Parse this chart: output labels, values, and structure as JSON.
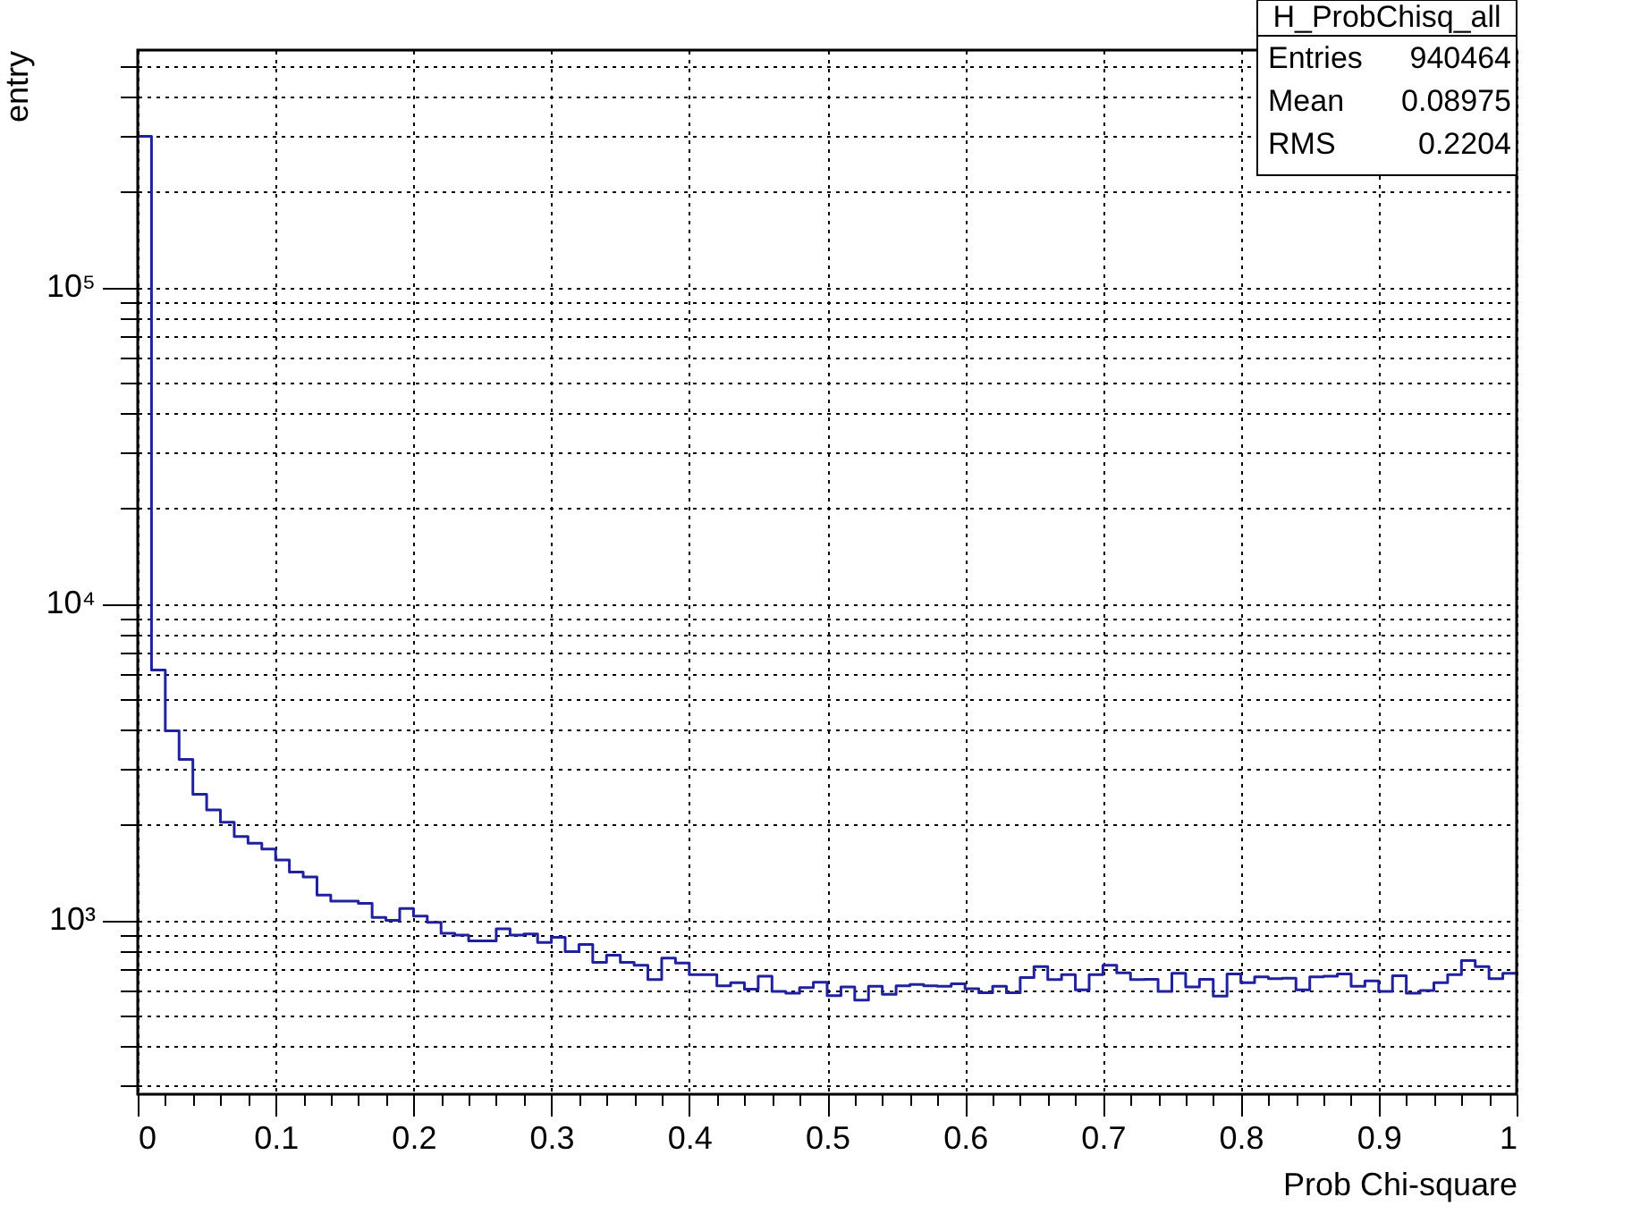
{
  "chart_data": {
    "type": "histogram",
    "xlabel": "Prob Chi-square",
    "ylabel": "entry",
    "bins": [
      0,
      0.01,
      0.02,
      0.03,
      0.04,
      0.05,
      0.06,
      0.07,
      0.08,
      0.09,
      0.1,
      0.11,
      0.12,
      0.13,
      0.14,
      0.15,
      0.16,
      0.17,
      0.18,
      0.19,
      0.2,
      0.21,
      0.22,
      0.23,
      0.24,
      0.25,
      0.26,
      0.27,
      0.28,
      0.29,
      0.3,
      0.31,
      0.32,
      0.33,
      0.34,
      0.35,
      0.36,
      0.37,
      0.38,
      0.39,
      0.4,
      0.41,
      0.42,
      0.43,
      0.44,
      0.45,
      0.46,
      0.47,
      0.48,
      0.49,
      0.5,
      0.51,
      0.52,
      0.53,
      0.54,
      0.55,
      0.56,
      0.57,
      0.58,
      0.59,
      0.6,
      0.61,
      0.62,
      0.63,
      0.64,
      0.65,
      0.66,
      0.67,
      0.68,
      0.69,
      0.7,
      0.71,
      0.72,
      0.73,
      0.74,
      0.75,
      0.76,
      0.77,
      0.78,
      0.79,
      0.8,
      0.81,
      0.82,
      0.83,
      0.84,
      0.85,
      0.86,
      0.87,
      0.88,
      0.89,
      0.9,
      0.91,
      0.92,
      0.93,
      0.94,
      0.95,
      0.96,
      0.97,
      0.98,
      0.99,
      1
    ],
    "values": [
      300000,
      6180,
      3970,
      3220,
      2500,
      2230,
      2040,
      1840,
      1750,
      1680,
      1550,
      1420,
      1370,
      1200,
      1150,
      1150,
      1130,
      1020,
      1000,
      1090,
      1030,
      985,
      910,
      897,
      860,
      860,
      940,
      897,
      905,
      851,
      883,
      796,
      838,
      736,
      775,
      736,
      721,
      649,
      759,
      732,
      673,
      673,
      621,
      635,
      606,
      666,
      596,
      588,
      613,
      637,
      578,
      616,
      559,
      619,
      583,
      621,
      627,
      621,
      619,
      630,
      608,
      590,
      619,
      590,
      659,
      714,
      649,
      673,
      603,
      673,
      721,
      682,
      649,
      651,
      596,
      680,
      616,
      651,
      576,
      676,
      635,
      662,
      654,
      656,
      603,
      662,
      666,
      676,
      619,
      643,
      596,
      668,
      588,
      600,
      635,
      673,
      746,
      714,
      654,
      680
    ],
    "color": "#2121a0",
    "log": true,
    "grid": true,
    "xlim": [
      0,
      1
    ],
    "ylim": [
      282,
      562000
    ],
    "xticks": [
      0,
      {
        "value": 0.02,
        "label": null
      },
      {
        "value": 0.04,
        "label": null
      },
      {
        "value": 0.06,
        "label": null
      },
      {
        "value": 0.08,
        "label": null
      },
      0.1,
      {
        "value": 0.12,
        "label": null
      },
      {
        "value": 0.14,
        "label": null
      },
      {
        "value": 0.16,
        "label": null
      },
      {
        "value": 0.18,
        "label": null
      },
      0.2,
      {
        "value": 0.22,
        "label": null
      },
      {
        "value": 0.24,
        "label": null
      },
      {
        "value": 0.26,
        "label": null
      },
      {
        "value": 0.28,
        "label": null
      },
      0.3,
      {
        "value": 0.32,
        "label": null
      },
      {
        "value": 0.34,
        "label": null
      },
      {
        "value": 0.36,
        "label": null
      },
      {
        "value": 0.38,
        "label": null
      },
      0.4,
      {
        "value": 0.42,
        "label": null
      },
      {
        "value": 0.44,
        "label": null
      },
      {
        "value": 0.46,
        "label": null
      },
      {
        "value": 0.48,
        "label": null
      },
      0.5,
      {
        "value": 0.52,
        "label": null
      },
      {
        "value": 0.54,
        "label": null
      },
      {
        "value": 0.56,
        "label": null
      },
      {
        "value": 0.58,
        "label": null
      },
      0.6,
      {
        "value": 0.62,
        "label": null
      },
      {
        "value": 0.64,
        "label": null
      },
      {
        "value": 0.66,
        "label": null
      },
      {
        "value": 0.68,
        "label": null
      },
      0.7,
      {
        "value": 0.72,
        "label": null
      },
      {
        "value": 0.74,
        "label": null
      },
      {
        "value": 0.76,
        "label": null
      },
      {
        "value": 0.78,
        "label": null
      },
      0.8,
      {
        "value": 0.82,
        "label": null
      },
      {
        "value": 0.84,
        "label": null
      },
      {
        "value": 0.86,
        "label": null
      },
      {
        "value": 0.88,
        "label": null
      },
      0.9,
      {
        "value": 0.92,
        "label": null
      },
      {
        "value": 0.94,
        "label": null
      },
      {
        "value": 0.96,
        "label": null
      },
      {
        "value": 0.98,
        "label": null
      },
      1
    ],
    "yticks": [
      {
        "value": 300,
        "label": null
      },
      {
        "value": 400,
        "label": null
      },
      {
        "value": 500,
        "label": null
      },
      {
        "value": 600,
        "label": null
      },
      {
        "value": 700,
        "label": null
      },
      {
        "value": 800,
        "label": null
      },
      {
        "value": 900,
        "label": null
      },
      {
        "value": 1000,
        "label": "10³"
      },
      {
        "value": 2000,
        "label": null
      },
      {
        "value": 3000,
        "label": null
      },
      {
        "value": 4000,
        "label": null
      },
      {
        "value": 5000,
        "label": null
      },
      {
        "value": 6000,
        "label": null
      },
      {
        "value": 7000,
        "label": null
      },
      {
        "value": 8000,
        "label": null
      },
      {
        "value": 9000,
        "label": null
      },
      {
        "value": 10000,
        "label": "10⁴"
      },
      {
        "value": 20000,
        "label": null
      },
      {
        "value": 30000,
        "label": null
      },
      {
        "value": 40000,
        "label": null
      },
      {
        "value": 50000,
        "label": null
      },
      {
        "value": 60000,
        "label": null
      },
      {
        "value": 70000,
        "label": null
      },
      {
        "value": 80000,
        "label": null
      },
      {
        "value": 90000,
        "label": null
      },
      {
        "value": 100000,
        "label": "10⁵"
      },
      {
        "value": 200000,
        "label": null
      },
      {
        "value": 300000,
        "label": null
      },
      {
        "value": 400000,
        "label": null
      },
      {
        "value": 500000,
        "label": null
      }
    ],
    "annotations": [
      "H_ProbChisq_all",
      "Entries",
      "940464",
      "Mean",
      "0.08975",
      "RMS",
      "0.2204"
    ]
  }
}
